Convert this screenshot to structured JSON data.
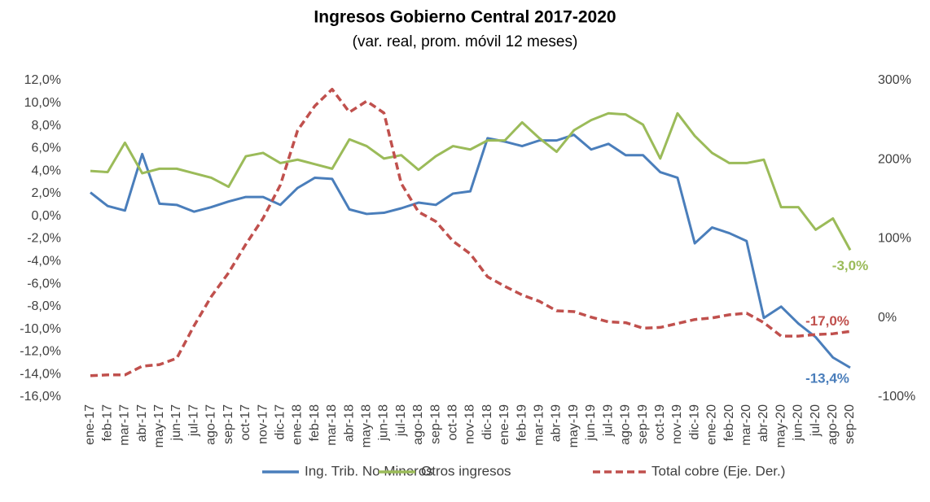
{
  "chart_data": {
    "type": "line",
    "title": "Ingresos Gobierno Central 2017-2020",
    "subtitle": "(var. real, prom. móvil 12 meses)",
    "categories": [
      "ene-17",
      "feb-17",
      "mar-17",
      "abr-17",
      "may-17",
      "jun-17",
      "jul-17",
      "ago-17",
      "sep-17",
      "oct-17",
      "nov-17",
      "dic-17",
      "ene-18",
      "feb-18",
      "mar-18",
      "abr-18",
      "may-18",
      "jun-18",
      "jul-18",
      "ago-18",
      "sep-18",
      "oct-18",
      "nov-18",
      "dic-18",
      "ene-19",
      "feb-19",
      "mar-19",
      "abr-19",
      "may-19",
      "jun-19",
      "jul-19",
      "ago-19",
      "sep-19",
      "oct-19",
      "nov-19",
      "dic-19",
      "ene-20",
      "feb-20",
      "mar-20",
      "abr-20",
      "may-20",
      "jun-20",
      "jul-20",
      "ago-20",
      "sep-20"
    ],
    "series": [
      {
        "name": "Ing. Trib. No Mineros",
        "color": "#4a7ebb",
        "dash": false,
        "values": [
          2.1,
          0.9,
          0.5,
          5.5,
          1.1,
          1.0,
          0.4,
          0.8,
          1.3,
          1.7,
          1.7,
          1.0,
          2.5,
          3.4,
          3.3,
          0.6,
          0.2,
          0.3,
          0.7,
          1.2,
          1.0,
          2.0,
          2.2,
          6.9,
          6.6,
          6.2,
          6.7,
          6.7,
          7.2,
          5.9,
          6.4,
          5.4,
          5.4,
          3.9,
          3.4,
          -2.4,
          -1.0,
          -1.5,
          -2.2,
          -9.0,
          -8.0,
          -9.5,
          -10.7,
          -12.5,
          -13.4
        ],
        "value_labels": [
          null,
          null,
          null,
          null,
          null,
          null,
          null,
          null,
          null,
          null,
          null,
          null,
          null,
          null,
          null,
          null,
          null,
          null,
          null,
          null,
          null,
          null,
          null,
          null,
          null,
          null,
          null,
          null,
          null,
          null,
          null,
          null,
          null,
          null,
          null,
          null,
          null,
          null,
          null,
          null,
          null,
          null,
          null,
          null,
          "-13,4%"
        ]
      },
      {
        "name": "Otros ingresos",
        "color": "#9bbb59",
        "dash": false,
        "values": [
          4.0,
          3.9,
          6.5,
          3.8,
          4.2,
          4.2,
          3.8,
          3.4,
          2.6,
          5.3,
          5.6,
          4.7,
          5.0,
          4.6,
          4.2,
          6.8,
          6.2,
          5.1,
          5.4,
          4.1,
          5.3,
          6.2,
          5.9,
          6.7,
          6.7,
          8.3,
          6.9,
          5.7,
          7.6,
          8.5,
          9.1,
          9.0,
          8.1,
          5.1,
          9.1,
          7.1,
          5.6,
          4.7,
          4.7,
          5.0,
          0.8,
          0.8,
          -1.2,
          -0.2,
          -3.0
        ],
        "value_labels": [
          null,
          null,
          null,
          null,
          null,
          null,
          null,
          null,
          null,
          null,
          null,
          null,
          null,
          null,
          null,
          null,
          null,
          null,
          null,
          null,
          null,
          null,
          null,
          null,
          null,
          null,
          null,
          null,
          null,
          null,
          null,
          null,
          null,
          null,
          null,
          null,
          null,
          null,
          null,
          null,
          null,
          null,
          null,
          null,
          "-3,0%"
        ]
      },
      {
        "name": "Total cobre (Eje. Der.)",
        "color": "#c0504d",
        "dash": true,
        "axis": "y2",
        "values": [
          -73,
          -72,
          -72,
          -61,
          -59,
          -51,
          -10,
          27,
          57,
          93,
          126,
          168,
          237,
          268,
          289,
          260,
          274,
          259,
          170,
          134,
          122,
          97,
          81,
          52,
          40,
          29,
          21,
          9,
          8,
          1,
          -5,
          -6,
          -13,
          -12,
          -7,
          -2,
          0,
          4,
          6,
          -6,
          -23,
          -23,
          -21,
          -20,
          -17
        ],
        "value_labels": [
          null,
          null,
          null,
          null,
          null,
          null,
          null,
          null,
          null,
          null,
          null,
          null,
          null,
          null,
          null,
          null,
          null,
          null,
          null,
          null,
          null,
          null,
          null,
          null,
          null,
          null,
          null,
          null,
          null,
          null,
          null,
          null,
          null,
          null,
          null,
          null,
          null,
          null,
          null,
          null,
          null,
          null,
          null,
          null,
          "-17,0%"
        ]
      }
    ],
    "ylim": [
      -16,
      12
    ],
    "yticks": [
      {
        "value": -16,
        "label": "-16,0%"
      },
      {
        "value": -14,
        "label": "-14,0%"
      },
      {
        "value": -12,
        "label": "-12,0%"
      },
      {
        "value": -10,
        "label": "-10,0%"
      },
      {
        "value": -8,
        "label": "-8,0%"
      },
      {
        "value": -6,
        "label": "-6,0%"
      },
      {
        "value": -4,
        "label": "-4,0%"
      },
      {
        "value": -2,
        "label": "-2,0%"
      },
      {
        "value": 0,
        "label": "0,0%"
      },
      {
        "value": 2,
        "label": "2,0%"
      },
      {
        "value": 4,
        "label": "4,0%"
      },
      {
        "value": 6,
        "label": "6,0%"
      },
      {
        "value": 8,
        "label": "8,0%"
      },
      {
        "value": 10,
        "label": "10,0%"
      },
      {
        "value": 12,
        "label": "12,0%"
      }
    ],
    "y2lim": [
      -100,
      300
    ],
    "y2ticks": [
      {
        "value": -100,
        "label": "-100%"
      },
      {
        "value": 0,
        "label": "0%"
      },
      {
        "value": 100,
        "label": "100%"
      },
      {
        "value": 200,
        "label": "200%"
      },
      {
        "value": 300,
        "label": "300%"
      }
    ],
    "grid": false,
    "legend": "bottom"
  }
}
